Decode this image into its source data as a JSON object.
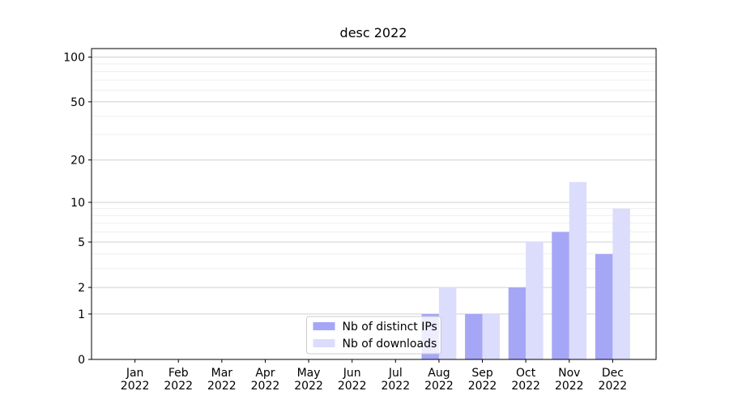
{
  "chart_data": {
    "type": "bar",
    "title": "desc 2022",
    "categories": [
      "Jan\n2022",
      "Feb\n2022",
      "Mar\n2022",
      "Apr\n2022",
      "May\n2022",
      "Jun\n2022",
      "Jul\n2022",
      "Aug\n2022",
      "Sep\n2022",
      "Oct\n2022",
      "Nov\n2022",
      "Dec\n2022"
    ],
    "series": [
      {
        "name": "Nb of distinct IPs",
        "color": "#a6a6f6",
        "values": [
          0,
          0,
          0,
          0,
          0,
          0,
          0,
          1,
          1,
          2,
          6,
          4
        ]
      },
      {
        "name": "Nb of downloads",
        "color": "#dcdcfc",
        "values": [
          0,
          0,
          0,
          0,
          0,
          0,
          0,
          2,
          1,
          5,
          14,
          9
        ]
      }
    ],
    "yscale": "log1p",
    "ylim": [
      0,
      114
    ],
    "yticks": [
      0,
      1,
      2,
      5,
      10,
      20,
      50,
      100
    ],
    "yminor": [
      3,
      4,
      6,
      7,
      8,
      9,
      30,
      40,
      60,
      70,
      80,
      90
    ],
    "grid": true,
    "legend": "lower center"
  }
}
